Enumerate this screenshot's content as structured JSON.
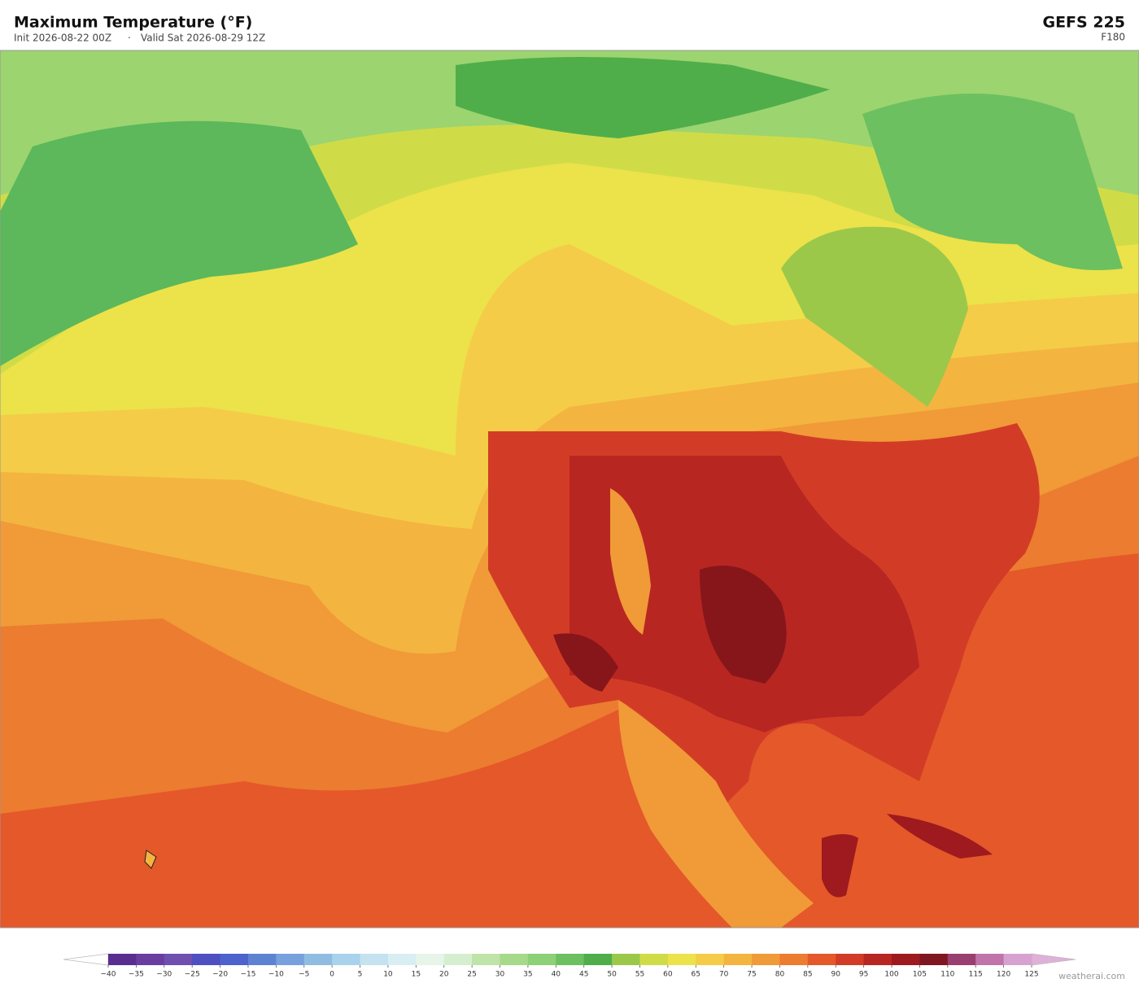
{
  "header": {
    "title": "Maximum Temperature  (°F)",
    "init": "Init 2026-08-22 00Z",
    "separator": "·",
    "valid": "Valid Sat 2026-08-29 12Z",
    "model": "GEFS  225",
    "forecast_hour": "F180"
  },
  "colorbar": {
    "ticks": [
      {
        "value": -40,
        "label": "−40"
      },
      {
        "value": -35,
        "label": "−35"
      },
      {
        "value": -30,
        "label": "−30"
      },
      {
        "value": -25,
        "label": "−25"
      },
      {
        "value": -20,
        "label": "−20"
      },
      {
        "value": -15,
        "label": "−15"
      },
      {
        "value": -10,
        "label": "−10"
      },
      {
        "value": -5,
        "label": "−5"
      },
      0,
      5,
      10,
      15,
      20,
      25,
      30,
      35,
      40,
      45,
      50,
      55,
      60,
      65,
      70,
      75,
      80,
      85,
      90,
      95,
      100,
      105,
      110,
      115,
      120,
      125
    ],
    "colors": [
      "#5a2d91",
      "#6a3ea0",
      "#6f4fb0",
      "#4e4fc0",
      "#4d62cc",
      "#5e82d2",
      "#78a0dc",
      "#90bce2",
      "#a9d2ec",
      "#c4e2f0",
      "#d9eef2",
      "#e6f4ea",
      "#d6eed0",
      "#bfe3a8",
      "#a6d98a",
      "#8cd078",
      "#6cc060",
      "#4fae4a",
      "#9cc84a",
      "#cfdc48",
      "#ece24a",
      "#f5cc48",
      "#f4b440",
      "#f09a38",
      "#ec7c30",
      "#e4582a",
      "#d23c26",
      "#b82622",
      "#9e1a1e",
      "#7f1620",
      "#9a4070",
      "#c074aa",
      "#d8a2d0"
    ],
    "extend_colors": [
      "#ffffff",
      "#e0b0d8"
    ]
  },
  "footer": {
    "credit": "weatherai.com"
  }
}
